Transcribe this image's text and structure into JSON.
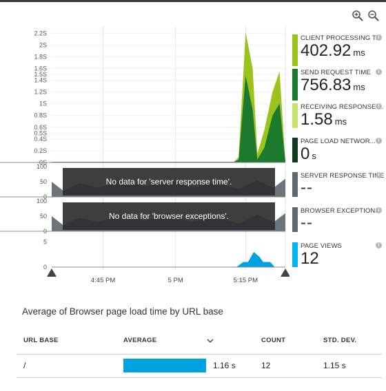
{
  "zoom": {
    "zoom_in_icon": "zoom-in-icon",
    "zoom_out_icon": "zoom-out-icon"
  },
  "chart_data": [
    {
      "type": "area",
      "title": "",
      "ylim": [
        0,
        2.25
      ],
      "y_ticks": [
        "0S",
        "0.2S",
        "0.4S",
        "0.5S",
        "0.6S",
        "0.8S",
        "1S",
        "1.2S",
        "1.4S",
        "1.5S",
        "1.6S",
        "1.8S",
        "2S",
        "2.2S"
      ],
      "series": [
        {
          "name": "CLIENT PROCESSING TI...",
          "color": "#9bc31c",
          "x": [
            0,
            0.78,
            0.8,
            0.83,
            0.86,
            0.88,
            0.91,
            0.945,
            0.975,
            1.0
          ],
          "values": [
            0.01,
            0.01,
            0.09,
            2.22,
            1.6,
            0.15,
            0.55,
            1.2,
            1.55,
            0.01
          ]
        },
        {
          "name": "SEND REQUEST TIME",
          "color": "#1b7a2e",
          "x": [
            0,
            0.78,
            0.8,
            0.83,
            0.86,
            0.88,
            0.91,
            0.945,
            0.975,
            1.0
          ],
          "values": [
            0.01,
            0.01,
            0.05,
            1.48,
            0.9,
            0.05,
            0.25,
            0.8,
            1.0,
            0.01
          ]
        }
      ]
    },
    {
      "type": "area",
      "ylim": [
        0,
        100
      ],
      "y_ticks": [
        "0",
        "50",
        "100"
      ],
      "message": "No data for 'server response time'."
    },
    {
      "type": "area",
      "ylim": [
        0,
        100
      ],
      "y_ticks": [
        "0",
        "50",
        "100"
      ],
      "message": "No data for 'browser exceptions'."
    },
    {
      "type": "area",
      "ylim": [
        0,
        6
      ],
      "y_ticks": [
        "0",
        "5"
      ],
      "series": [
        {
          "name": "PAGE VIEWS",
          "color": "#00a3e0",
          "x": [
            0,
            0.79,
            0.82,
            0.84,
            0.865,
            0.89,
            0.905,
            0.935,
            0.955,
            1.0
          ],
          "values": [
            0,
            0,
            1,
            1,
            3,
            2,
            1,
            1,
            0,
            0
          ]
        }
      ]
    }
  ],
  "x_axis": {
    "ticks": [
      "4:45 PM",
      "5 PM",
      "5:15 PM"
    ],
    "tick_positions": [
      0.22,
      0.53,
      0.83
    ]
  },
  "tiles": [
    {
      "label": "CLIENT PROCESSING T...",
      "value": "402.92",
      "unit": "ms",
      "color": "#9bc31c"
    },
    {
      "label": "SEND REQUEST TIME",
      "value": "756.83",
      "unit": "ms",
      "color": "#1b7a2e"
    },
    {
      "label": "RECEIVING RESPONSE ...",
      "value": "1.58",
      "unit": "ms",
      "color": "#c6e26e"
    },
    {
      "label": "PAGE LOAD NETWOR...",
      "value": "0",
      "unit": "s",
      "color": "#0e3b1e"
    },
    {
      "label": "SERVER RESPONSE TIME",
      "value": "--",
      "unit": "",
      "color": "#5e6a73"
    },
    {
      "label": "BROWSER EXCEPTIONS",
      "value": "--",
      "unit": "",
      "color": "#5e6a73"
    },
    {
      "label": "PAGE VIEWS",
      "value": "12",
      "unit": "",
      "color": "#00b4f0"
    }
  ],
  "grid": {
    "title": "Average of Browser page load time by URL base",
    "columns": [
      "URL BASE",
      "AVERAGE",
      "COUNT",
      "STD. DEV."
    ],
    "rows": [
      {
        "url": "/",
        "average": "1.16 s",
        "count": "12",
        "std": "1.15 s",
        "fill": 1.0
      }
    ]
  }
}
